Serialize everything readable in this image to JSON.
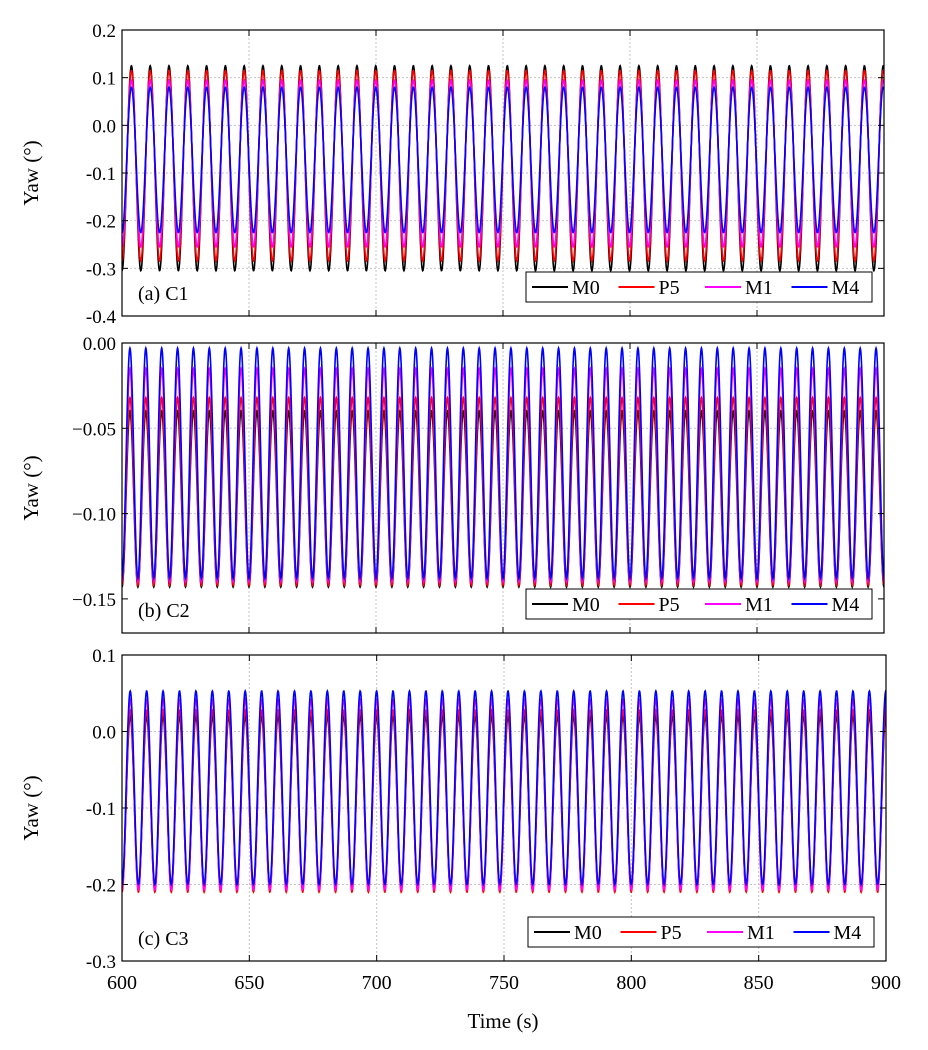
{
  "figure": {
    "xlabel": "Time (s)",
    "colors": {
      "M0": "#000000",
      "P5": "#ff0000",
      "M1": "#ff00ff",
      "M4": "#0000ff"
    }
  },
  "chart_data": [
    {
      "type": "line",
      "panel_label": "(a) C1",
      "ylabel": "Yaw (°)",
      "xlabel": "Time (s)",
      "xlim": [
        600,
        900
      ],
      "ylim": [
        -0.4,
        0.2
      ],
      "xticks": [
        600,
        650,
        700,
        750,
        800,
        850,
        900
      ],
      "yticks": [
        "0.2",
        "0.1",
        "0.0",
        "-0.1",
        "-0.2",
        "-0.3",
        "-0.4"
      ],
      "ytick_values": [
        0.2,
        0.1,
        0.0,
        -0.1,
        -0.2,
        -0.3,
        -0.4
      ],
      "grid": true,
      "legend_position": "bottom-right",
      "period_s": 7.4,
      "x_start": 600,
      "series": [
        {
          "name": "M0",
          "color": "#000000",
          "max": 0.125,
          "min": -0.305
        },
        {
          "name": "P5",
          "color": "#ff0000",
          "max": 0.115,
          "min": -0.285
        },
        {
          "name": "M1",
          "color": "#ff00ff",
          "max": 0.095,
          "min": -0.255
        },
        {
          "name": "M4",
          "color": "#0000ff",
          "max": 0.08,
          "min": -0.225
        }
      ]
    },
    {
      "type": "line",
      "panel_label": "(b) C2",
      "ylabel": "Yaw (°)",
      "xlabel": "Time (s)",
      "xlim": [
        600,
        900
      ],
      "ylim": [
        -0.17,
        0.0
      ],
      "xticks": [
        600,
        650,
        700,
        750,
        800,
        850,
        900
      ],
      "yticks": [
        "0.00",
        "−0.05",
        "−0.10",
        "−0.15"
      ],
      "ytick_values": [
        0.0,
        -0.05,
        -0.1,
        -0.15
      ],
      "grid": true,
      "legend_position": "bottom-right",
      "period_s": 6.25,
      "x_start": 600,
      "series": [
        {
          "name": "M0",
          "color": "#000000",
          "max": -0.04,
          "min": -0.143
        },
        {
          "name": "P5",
          "color": "#ff0000",
          "max": -0.032,
          "min": -0.142
        },
        {
          "name": "M1",
          "color": "#ff00ff",
          "max": -0.015,
          "min": -0.14
        },
        {
          "name": "M4",
          "color": "#0000ff",
          "max": -0.003,
          "min": -0.138
        }
      ]
    },
    {
      "type": "line",
      "panel_label": "(c) C3",
      "ylabel": "Yaw (°)",
      "xlabel": "Time (s)",
      "xlim": [
        600,
        900
      ],
      "ylim": [
        -0.3,
        0.1
      ],
      "xticks": [
        600,
        650,
        700,
        750,
        800,
        850,
        900
      ],
      "yticks": [
        "0.1",
        "0.0",
        "-0.1",
        "-0.2",
        "-0.3"
      ],
      "ytick_values": [
        0.1,
        0.0,
        -0.1,
        -0.2,
        -0.3
      ],
      "grid": true,
      "legend_position": "bottom-right",
      "period_s": 6.45,
      "x_start": 600,
      "series": [
        {
          "name": "M0",
          "color": "#000000",
          "max": 0.02,
          "min": -0.205
        },
        {
          "name": "P5",
          "color": "#ff0000",
          "max": 0.028,
          "min": -0.21
        },
        {
          "name": "M1",
          "color": "#ff00ff",
          "max": 0.042,
          "min": -0.207
        },
        {
          "name": "M4",
          "color": "#0000ff",
          "max": 0.053,
          "min": -0.2
        }
      ]
    }
  ]
}
